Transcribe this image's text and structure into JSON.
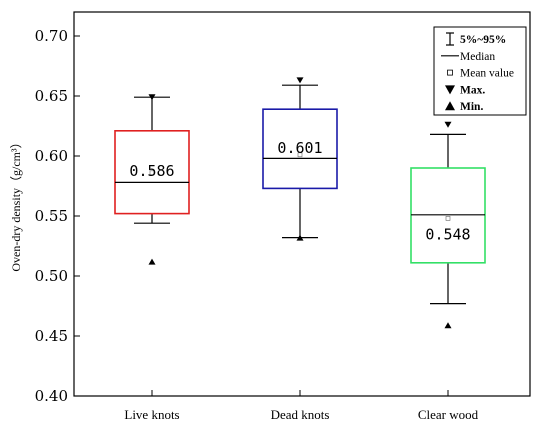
{
  "chart_data": {
    "type": "boxplot",
    "ylabel": "Oven-dry density（g/cm³）",
    "ylim": [
      0.4,
      0.72
    ],
    "yticks": [
      "0.40",
      "0.45",
      "0.50",
      "0.55",
      "0.60",
      "0.65",
      "0.70"
    ],
    "grid": false,
    "legend_position": "top-right",
    "categories": [
      "Live knots",
      "Dead knots",
      "Clear wood"
    ],
    "boxes": [
      {
        "category": "Live knots",
        "color": "#e02020",
        "p5": 0.544,
        "q1": 0.552,
        "median": 0.578,
        "q3": 0.621,
        "p95": 0.649,
        "mean": 0.586,
        "mean_label": "0.586",
        "max": 0.649,
        "min": 0.512
      },
      {
        "category": "Dead knots",
        "color": "#1a1aa8",
        "p5": 0.532,
        "q1": 0.573,
        "median": 0.598,
        "q3": 0.639,
        "p95": 0.659,
        "mean": 0.601,
        "mean_label": "0.601",
        "max": 0.663,
        "min": 0.532
      },
      {
        "category": "Clear wood",
        "color": "#33e066",
        "p5": 0.477,
        "q1": 0.511,
        "median": 0.551,
        "q3": 0.59,
        "p95": 0.618,
        "mean": 0.548,
        "mean_label": "0.548",
        "max": 0.626,
        "min": 0.459
      }
    ],
    "legend": [
      {
        "symbol": "whisker",
        "label": "5%~95%"
      },
      {
        "symbol": "line",
        "label": "Median"
      },
      {
        "symbol": "square",
        "label": "Mean value"
      },
      {
        "symbol": "triangle-down",
        "label": "Max."
      },
      {
        "symbol": "triangle-up",
        "label": "Min."
      }
    ]
  }
}
